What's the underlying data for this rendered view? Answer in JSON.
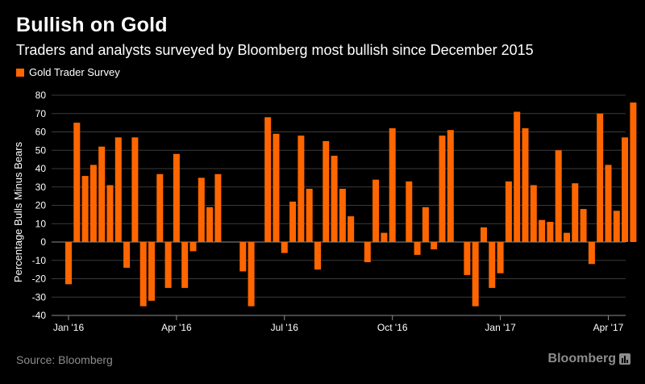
{
  "header": {
    "title": "Bullish on Gold",
    "subtitle": "Traders and analysts surveyed by Bloomberg most bullish since December 2015"
  },
  "footer": {
    "source": "Source: Bloomberg",
    "brand": "Bloomberg"
  },
  "colors": {
    "bar": "#ff6600",
    "background": "#000000",
    "grid": "#3a3a3a",
    "text": "#ffffff",
    "muted": "#8c8c8c"
  },
  "chart_data": {
    "type": "bar",
    "title": "Bullish on Gold",
    "subtitle": "Traders and analysts surveyed by Bloomberg most bullish since December 2015",
    "ylabel": "Percentage Bulls Minus Bears",
    "xlabel": "",
    "ylim": [
      -40,
      80
    ],
    "yticks": [
      -40,
      -30,
      -20,
      -10,
      0,
      10,
      20,
      30,
      40,
      50,
      60,
      70,
      80
    ],
    "grid": true,
    "legend_position": "top-left",
    "xticks": [
      {
        "label": "Jan '16",
        "index": 0
      },
      {
        "label": "Apr '16",
        "index": 13
      },
      {
        "label": "Jul '16",
        "index": 26
      },
      {
        "label": "Oct '16",
        "index": 39
      },
      {
        "label": "Jan '17",
        "index": 52
      },
      {
        "label": "Apr '17",
        "index": 65
      }
    ],
    "series": [
      {
        "name": "Gold Trader Survey",
        "values": [
          -23,
          65,
          36,
          42,
          52,
          31,
          57,
          -14,
          57,
          -35,
          -32,
          37,
          -25,
          48,
          -25,
          -5,
          35,
          19,
          37,
          0,
          0,
          -16,
          -35,
          0,
          68,
          59,
          -6,
          22,
          58,
          29,
          -15,
          55,
          47,
          29,
          14,
          0,
          -11,
          34,
          5,
          62,
          0,
          33,
          -7,
          19,
          -4,
          58,
          61,
          0,
          -18,
          -35,
          8,
          -25,
          -17,
          33,
          71,
          62,
          31,
          12,
          11,
          50,
          5,
          32,
          18,
          -12,
          70,
          42,
          17,
          57,
          76
        ]
      }
    ]
  }
}
